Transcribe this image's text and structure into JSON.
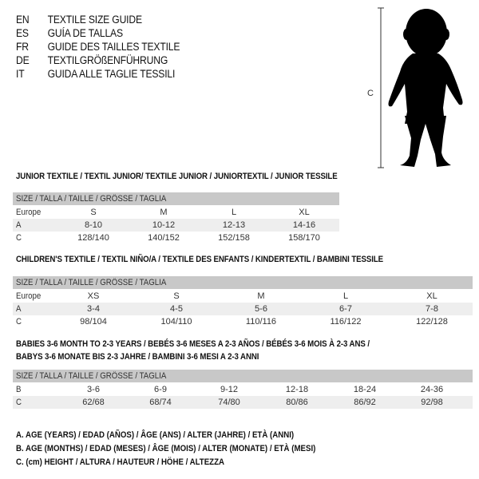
{
  "languages": [
    {
      "code": "EN",
      "title": "TEXTILE SIZE GUIDE"
    },
    {
      "code": "ES",
      "title": "GUÍA DE TALLAS"
    },
    {
      "code": "FR",
      "title": "GUIDE DES TAILLES TEXTILE"
    },
    {
      "code": "DE",
      "title": "TEXTILGRÖßENFÜHRUNG"
    },
    {
      "code": "IT",
      "title": "GUIDA ALLE TAGLIE TESSILI"
    }
  ],
  "figure": {
    "measure_label": "C",
    "icon": "child-silhouette"
  },
  "size_header": "SIZE / TALLA / TAILLE / GRÖSSE / TAGLIA",
  "tables": [
    {
      "title": "JUNIOR TEXTILE / TEXTIL JUNIOR/ TEXTILE JUNIOR / JUNIORTEXTIL / JUNIOR TESSILE",
      "rows": [
        {
          "label": "Europe",
          "values": [
            "S",
            "M",
            "L",
            "XL"
          ]
        },
        {
          "label": "A",
          "values": [
            "8-10",
            "10-12",
            "12-13",
            "14-16"
          ]
        },
        {
          "label": "C",
          "values": [
            "128/140",
            "140/152",
            "152/158",
            "158/170"
          ]
        }
      ]
    },
    {
      "title": "CHILDREN'S TEXTILE / TEXTIL NIÑO/A / TEXTILE DES ENFANTS / KINDERTEXTIL / BAMBINI TESSILE",
      "rows": [
        {
          "label": "Europe",
          "values": [
            "XS",
            "S",
            "M",
            "L",
            "XL"
          ]
        },
        {
          "label": "A",
          "values": [
            "3-4",
            "4-5",
            "5-6",
            "6-7",
            "7-8"
          ]
        },
        {
          "label": "C",
          "values": [
            "98/104",
            "104/110",
            "110/116",
            "116/122",
            "122/128"
          ]
        }
      ]
    },
    {
      "title": "BABIES 3-6 MONTH TO 2-3 YEARS / BEBÉS 3-6 MESES A 2-3 AÑOS / BÉBÉS 3-6 MOIS À 2-3 ANS /",
      "title2": "BABYS 3-6 MONATE BIS 2-3 JAHRE / BAMBINI 3-6 MESI A 2-3 ANNI",
      "rows": [
        {
          "label": "B",
          "values": [
            "3-6",
            "6-9",
            "9-12",
            "12-18",
            "18-24",
            "24-36"
          ]
        },
        {
          "label": "C",
          "values": [
            "62/68",
            "68/74",
            "74/80",
            "80/86",
            "86/92",
            "92/98"
          ]
        }
      ]
    }
  ],
  "legend": [
    "A. AGE (YEARS) / EDAD (AÑOS) / ÂGE (ANS) / ALTER (JAHRE) / ETÀ (ANNI)",
    "B. AGE (MONTHS) / EDAD (MESES) / ÂGE (MOIS) / ALTER (MONATE) / ETÀ (MESI)",
    "C. (cm) HEIGHT / ALTURA / HAUTEUR / HÖHE / ALTEZZA"
  ]
}
